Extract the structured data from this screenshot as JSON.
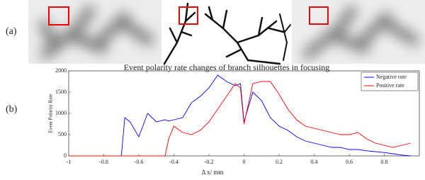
{
  "panel_labels": [
    "(a)",
    "(b)"
  ],
  "chart_data": {
    "type": "line",
    "title": "Event polarity rate changes of branch silhouettes in focusing",
    "x_label": "Δ x/ mm",
    "y_label": "Event Polarity Rate",
    "x": [
      -1,
      -0.7,
      -0.68,
      -0.65,
      -0.6,
      -0.55,
      -0.5,
      -0.45,
      -0.43,
      -0.4,
      -0.35,
      -0.3,
      -0.25,
      -0.2,
      -0.15,
      -0.1,
      -0.05,
      -0.02,
      0,
      0.05,
      0.1,
      0.15,
      0.2,
      0.25,
      0.3,
      0.35,
      0.4,
      0.45,
      0.5,
      0.55,
      0.6,
      0.65,
      0.7,
      0.75,
      0.8,
      0.85,
      0.9,
      0.95
    ],
    "series": [
      {
        "name": "Negative rate",
        "color": "#0000ff",
        "values": [
          0,
          0,
          900,
          800,
          450,
          1000,
          800,
          850,
          820,
          850,
          900,
          1250,
          1400,
          1600,
          1900,
          1750,
          1650,
          1700,
          800,
          1500,
          1300,
          900,
          700,
          600,
          450,
          350,
          300,
          250,
          200,
          200,
          150,
          150,
          120,
          100,
          80,
          50,
          20,
          0
        ]
      },
      {
        "name": "Positive rate",
        "color": "#ff0000",
        "values": [
          0,
          0,
          0,
          0,
          0,
          0,
          0,
          0,
          400,
          700,
          550,
          500,
          600,
          800,
          1100,
          1400,
          1700,
          1600,
          750,
          1700,
          1750,
          1750,
          1450,
          1100,
          850,
          700,
          650,
          600,
          550,
          500,
          500,
          550,
          400,
          300,
          250,
          200,
          250,
          300
        ]
      }
    ],
    "xlim": [
      -1,
      1
    ],
    "xticks": [
      -1,
      -0.8,
      -0.6,
      -0.4,
      -0.2,
      0,
      0.2,
      0.4,
      0.6,
      0.8
    ],
    "ylim": [
      0,
      2000
    ],
    "yticks": [
      0,
      500,
      1000,
      1500,
      2000
    ],
    "legend": "upper right"
  }
}
